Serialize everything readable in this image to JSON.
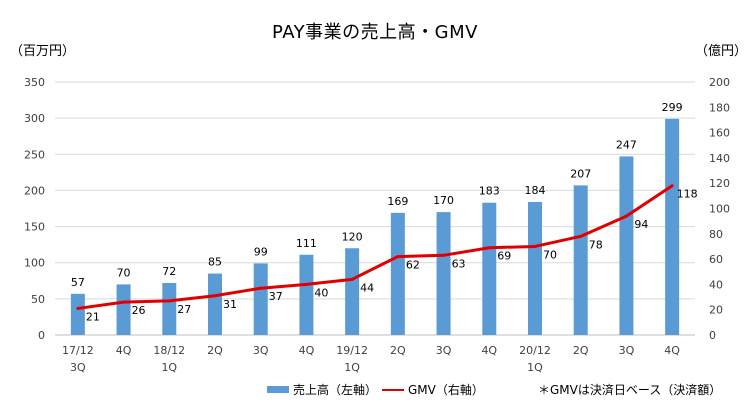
{
  "chart_data": {
    "type": "bar",
    "title": "PAY事業の売上高・GMV",
    "left_unit": "（百万円）",
    "right_unit": "（億円）",
    "categories": [
      "17/12\n3Q",
      "4Q",
      "18/12\n1Q",
      "2Q",
      "3Q",
      "4Q",
      "19/12\n1Q",
      "2Q",
      "3Q",
      "4Q",
      "20/12\n1Q",
      "2Q",
      "3Q",
      "4Q"
    ],
    "series": [
      {
        "name": "売上高（左軸）",
        "type": "bar",
        "axis": "left",
        "color": "#5b9bd5",
        "values": [
          57,
          70,
          72,
          85,
          99,
          111,
          120,
          169,
          170,
          183,
          184,
          207,
          247,
          299
        ]
      },
      {
        "name": "GMV（右軸）",
        "type": "line",
        "axis": "right",
        "color": "#e00000",
        "values": [
          21,
          26,
          27,
          31,
          37,
          40,
          44,
          62,
          63,
          69,
          70,
          78,
          94,
          118
        ]
      }
    ],
    "ylim_left": [
      0,
      350
    ],
    "yticks_left": [
      0,
      50,
      100,
      150,
      200,
      250,
      300,
      350
    ],
    "ylim_right": [
      0,
      200
    ],
    "yticks_right": [
      0,
      20,
      40,
      60,
      80,
      100,
      120,
      140,
      160,
      180,
      200
    ],
    "grid": true,
    "legend": "bottom"
  },
  "note": "＊GMVは決済日ベース（決済額）"
}
